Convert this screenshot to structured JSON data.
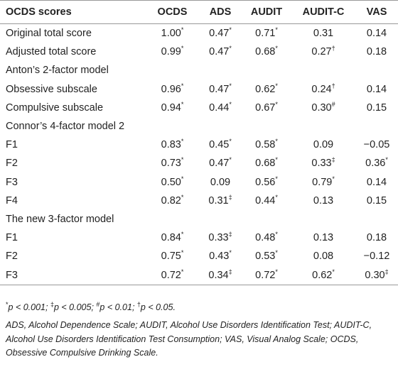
{
  "table": {
    "header": [
      "OCDS scores",
      "OCDS",
      "ADS",
      "AUDIT",
      "AUDIT-C",
      "VAS"
    ],
    "rows": [
      {
        "label": "Original total score",
        "cells": [
          {
            "text": "1.00",
            "sup": "*"
          },
          {
            "text": "0.47",
            "sup": "*"
          },
          {
            "text": "0.71",
            "sup": "*"
          },
          "0.31",
          "0.14"
        ]
      },
      {
        "label": "Adjusted total score",
        "cells": [
          {
            "text": "0.99",
            "sup": "*"
          },
          {
            "text": "0.47",
            "sup": "*"
          },
          {
            "text": "0.68",
            "sup": "*"
          },
          {
            "text": "0.27",
            "sup": "†"
          },
          "0.18"
        ]
      },
      {
        "label": "Anton’s 2-factor model"
      },
      {
        "label": "Obsessive subscale",
        "cells": [
          {
            "text": "0.96",
            "sup": "*"
          },
          {
            "text": "0.47",
            "sup": "*"
          },
          {
            "text": "0.62",
            "sup": "*"
          },
          {
            "text": "0.24",
            "sup": "†"
          },
          "0.14"
        ]
      },
      {
        "label": "Compulsive subscale",
        "cells": [
          {
            "text": "0.94",
            "sup": "*"
          },
          {
            "text": "0.44",
            "sup": "*"
          },
          {
            "text": "0.67",
            "sup": "*"
          },
          {
            "text": "0.30",
            "sup": "#"
          },
          "0.15"
        ]
      },
      {
        "label": "Connor’s 4-factor model 2"
      },
      {
        "label": "F1",
        "cells": [
          {
            "text": "0.83",
            "sup": "*"
          },
          {
            "text": "0.45",
            "sup": "*"
          },
          {
            "text": "0.58",
            "sup": "*"
          },
          "0.09",
          "−0.05"
        ]
      },
      {
        "label": "F2",
        "cells": [
          {
            "text": "0.73",
            "sup": "*"
          },
          {
            "text": "0.47",
            "sup": "*"
          },
          {
            "text": "0.68",
            "sup": "*"
          },
          {
            "text": "0.33",
            "sup": "‡"
          },
          {
            "text": "0.36",
            "sup": "*"
          }
        ]
      },
      {
        "label": "F3",
        "cells": [
          {
            "text": "0.50",
            "sup": "*"
          },
          "0.09",
          {
            "text": "0.56",
            "sup": "*"
          },
          {
            "text": "0.79",
            "sup": "*"
          },
          "0.14"
        ]
      },
      {
        "label": "F4",
        "cells": [
          {
            "text": "0.82",
            "sup": "*"
          },
          {
            "text": "0.31",
            "sup": "‡"
          },
          {
            "text": "0.44",
            "sup": "*"
          },
          "0.13",
          "0.15"
        ]
      },
      {
        "label": "The new 3-factor model"
      },
      {
        "label": "F1",
        "cells": [
          {
            "text": "0.84",
            "sup": "*"
          },
          {
            "text": "0.33",
            "sup": "‡"
          },
          {
            "text": "0.48",
            "sup": "*"
          },
          "0.13",
          "0.18"
        ]
      },
      {
        "label": "F2",
        "cells": [
          {
            "text": "0.75",
            "sup": "*"
          },
          {
            "text": "0.43",
            "sup": "*"
          },
          {
            "text": "0.53",
            "sup": "*"
          },
          "0.08",
          "−0.12"
        ]
      },
      {
        "label": "F3",
        "cells": [
          {
            "text": "0.72",
            "sup": "*"
          },
          {
            "text": "0.34",
            "sup": "‡"
          },
          {
            "text": "0.72",
            "sup": "*"
          },
          {
            "text": "0.62",
            "sup": "*"
          },
          {
            "text": "0.30",
            "sup": "‡"
          }
        ]
      }
    ]
  },
  "footnotes": {
    "significance": [
      {
        "sup": "*",
        "text": "p < 0.001;"
      },
      {
        "sup": "‡",
        "text": "p < 0.005;"
      },
      {
        "sup": "#",
        "text": "p < 0.01;"
      },
      {
        "sup": "†",
        "text": "p < 0.05."
      }
    ],
    "abbreviations": "ADS, Alcohol Dependence Scale; AUDIT, Alcohol Use Disorders Identification Test; AUDIT-C, Alcohol Use Disorders Identification Test Consumption; VAS, Visual Analog Scale; OCDS, Obsessive Compulsive Drinking Scale."
  }
}
